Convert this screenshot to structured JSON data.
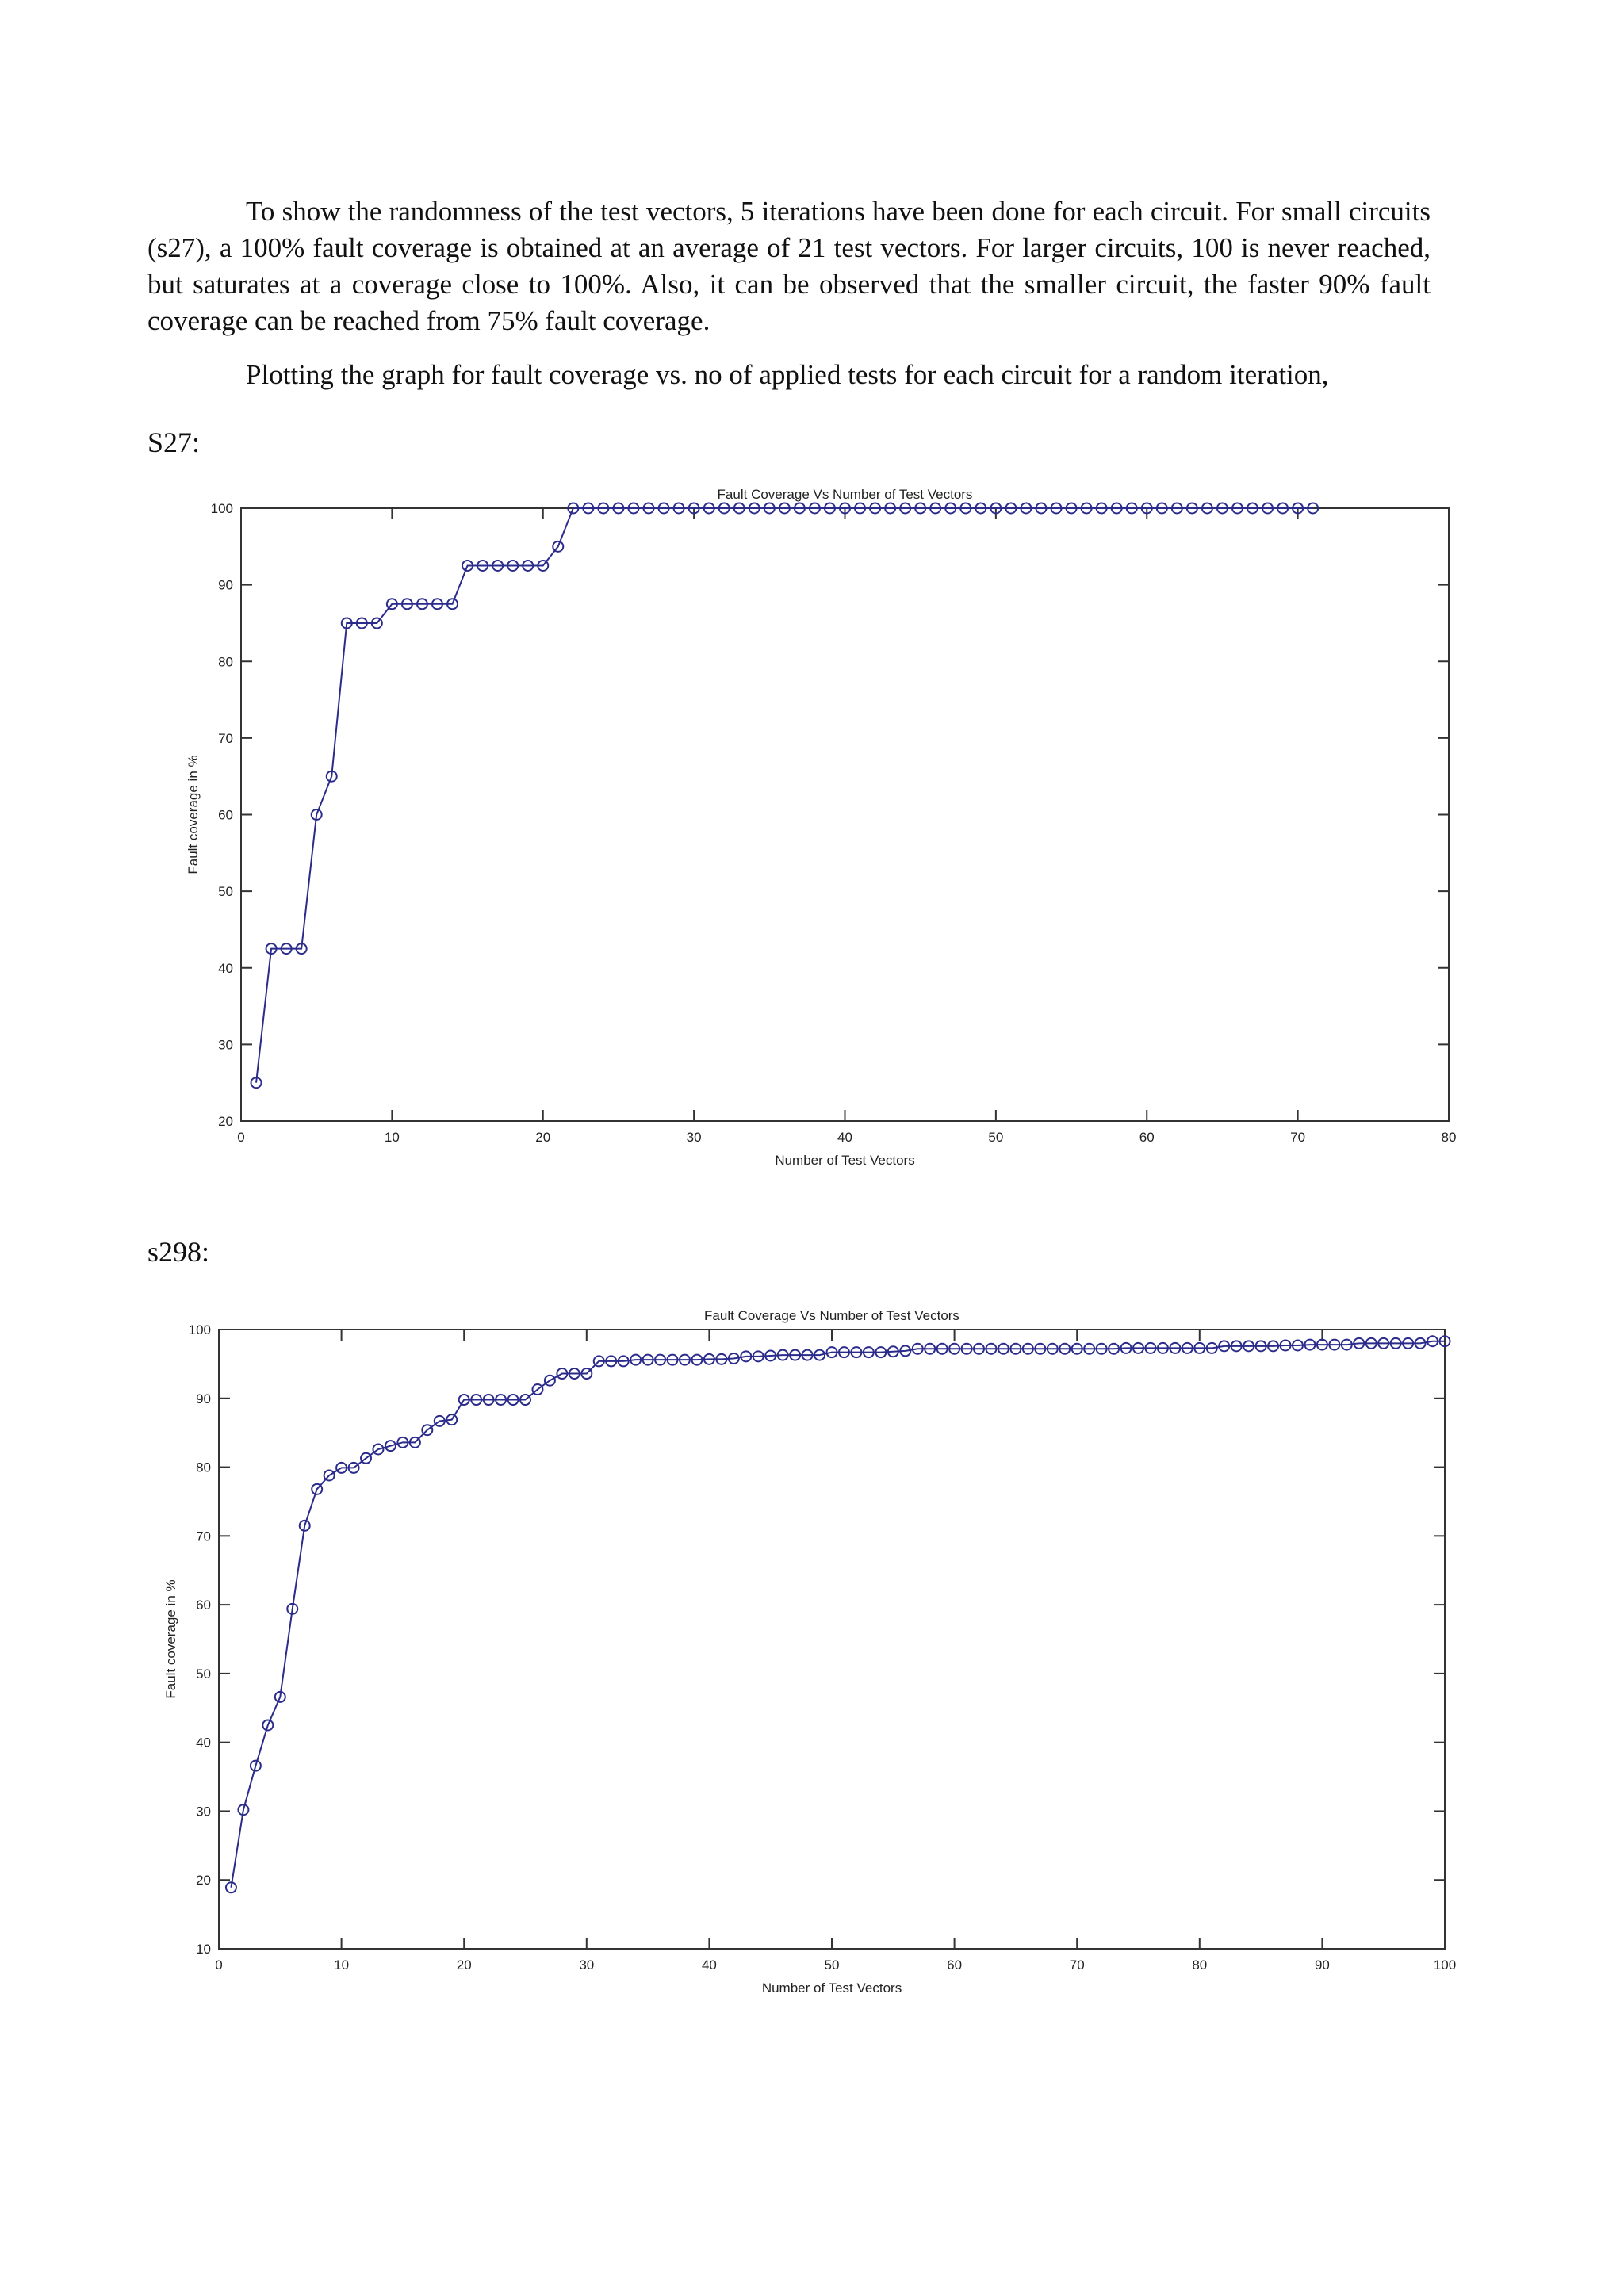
{
  "paragraphs": [
    "To show the randomness of the test vectors, 5 iterations have been done for each circuit. For small circuits (s27), a 100% fault coverage is obtained at an average of 21 test vectors. For larger circuits, 100 is never reached, but saturates at a coverage close to 100%. Also, it can be observed that the smaller circuit, the faster 90% fault coverage can be reached from 75% fault coverage.",
    "Plotting the graph for fault coverage vs. no of applied tests for each circuit for a random iteration,"
  ],
  "headings": {
    "s27": "S27:",
    "s298": "s298:"
  },
  "colors": {
    "line": "#2b2b8c",
    "axis": "#333333"
  },
  "chart_data": [
    {
      "type": "line",
      "title": "Fault Coverage Vs Number of Test Vectors",
      "xlabel": "Number of Test Vectors",
      "ylabel": "Fault coverage in %",
      "xlim": [
        0,
        80
      ],
      "ylim": [
        20,
        100
      ],
      "xticks": [
        0,
        10,
        20,
        30,
        40,
        50,
        60,
        70,
        80
      ],
      "yticks": [
        20,
        30,
        40,
        50,
        60,
        70,
        80,
        90,
        100
      ],
      "marker": "circle",
      "grid": false,
      "x": [
        1,
        2,
        3,
        4,
        5,
        6,
        7,
        8,
        9,
        10,
        11,
        12,
        13,
        14,
        15,
        16,
        17,
        18,
        19,
        20,
        21,
        22,
        23,
        24,
        25,
        26,
        27,
        28,
        29,
        30,
        31,
        32,
        33,
        34,
        35,
        36,
        37,
        38,
        39,
        40,
        41,
        42,
        43,
        44,
        45,
        46,
        47,
        48,
        49,
        50,
        51,
        52,
        53,
        54,
        55,
        56,
        57,
        58,
        59,
        60,
        61,
        62,
        63,
        64,
        65,
        66,
        67,
        68,
        69,
        70,
        71
      ],
      "y": [
        25,
        42.5,
        42.5,
        42.5,
        60,
        65,
        85,
        85,
        85,
        87.5,
        87.5,
        87.5,
        87.5,
        87.5,
        92.5,
        92.5,
        92.5,
        92.5,
        92.5,
        92.5,
        95,
        100,
        100,
        100,
        100,
        100,
        100,
        100,
        100,
        100,
        100,
        100,
        100,
        100,
        100,
        100,
        100,
        100,
        100,
        100,
        100,
        100,
        100,
        100,
        100,
        100,
        100,
        100,
        100,
        100,
        100,
        100,
        100,
        100,
        100,
        100,
        100,
        100,
        100,
        100,
        100,
        100,
        100,
        100,
        100,
        100,
        100,
        100,
        100,
        100,
        100
      ]
    },
    {
      "type": "line",
      "title": "Fault Coverage Vs Number of Test Vectors",
      "xlabel": "Number of Test Vectors",
      "ylabel": "Fault coverage in %",
      "xlim": [
        0,
        100
      ],
      "ylim": [
        10,
        100
      ],
      "xticks": [
        0,
        10,
        20,
        30,
        40,
        50,
        60,
        70,
        80,
        90,
        100
      ],
      "yticks": [
        10,
        20,
        30,
        40,
        50,
        60,
        70,
        80,
        90,
        100
      ],
      "marker": "circle",
      "grid": false,
      "x": [
        1,
        2,
        3,
        4,
        5,
        6,
        7,
        8,
        9,
        10,
        11,
        12,
        13,
        14,
        15,
        16,
        17,
        18,
        19,
        20,
        21,
        22,
        23,
        24,
        25,
        26,
        27,
        28,
        29,
        30,
        31,
        32,
        33,
        34,
        35,
        36,
        37,
        38,
        39,
        40,
        41,
        42,
        43,
        44,
        45,
        46,
        47,
        48,
        49,
        50,
        51,
        52,
        53,
        54,
        55,
        56,
        57,
        58,
        59,
        60,
        61,
        62,
        63,
        64,
        65,
        66,
        67,
        68,
        69,
        70,
        71,
        72,
        73,
        74,
        75,
        76,
        77,
        78,
        79,
        80,
        81,
        82,
        83,
        84,
        85,
        86,
        87,
        88,
        89,
        90,
        91,
        92,
        93,
        94,
        95,
        96,
        97,
        98,
        99,
        100
      ],
      "y": [
        18.9,
        30.2,
        36.6,
        42.5,
        46.6,
        59.4,
        71.5,
        76.8,
        78.8,
        79.9,
        79.9,
        81.3,
        82.6,
        83.1,
        83.6,
        83.6,
        85.4,
        86.7,
        86.9,
        89.8,
        89.8,
        89.8,
        89.8,
        89.8,
        89.8,
        91.3,
        92.6,
        93.6,
        93.6,
        93.6,
        95.4,
        95.4,
        95.4,
        95.6,
        95.6,
        95.6,
        95.6,
        95.6,
        95.6,
        95.7,
        95.7,
        95.8,
        96.1,
        96.1,
        96.2,
        96.3,
        96.3,
        96.3,
        96.3,
        96.7,
        96.7,
        96.7,
        96.7,
        96.7,
        96.8,
        96.9,
        97.2,
        97.2,
        97.2,
        97.2,
        97.2,
        97.2,
        97.2,
        97.2,
        97.2,
        97.2,
        97.2,
        97.2,
        97.2,
        97.2,
        97.2,
        97.2,
        97.2,
        97.3,
        97.3,
        97.3,
        97.3,
        97.3,
        97.3,
        97.3,
        97.3,
        97.6,
        97.6,
        97.6,
        97.6,
        97.6,
        97.7,
        97.7,
        97.8,
        97.8,
        97.8,
        97.8,
        98,
        98,
        98,
        98,
        98,
        98,
        98.3,
        98.3
      ]
    }
  ]
}
